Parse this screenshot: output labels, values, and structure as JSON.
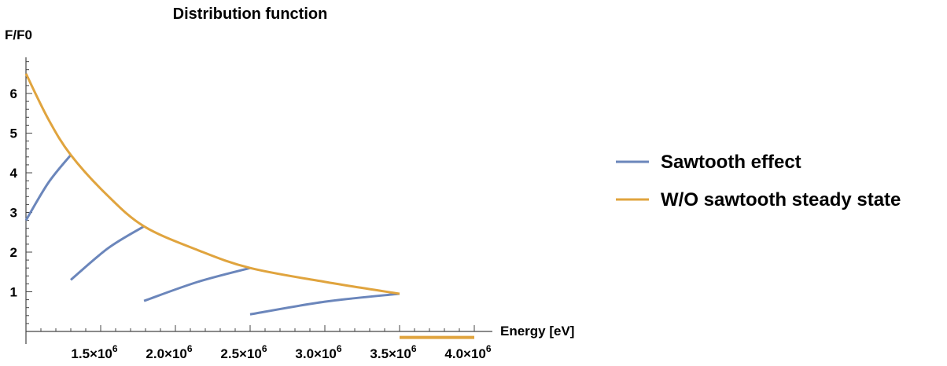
{
  "chart_data": {
    "type": "line",
    "title": "Distribution function",
    "xlabel": "Energy [eV]",
    "ylabel": "F/F0",
    "xlim": [
      1000000,
      4000000
    ],
    "ylim": [
      0,
      7
    ],
    "x_ticks": [
      {
        "value": 1500000,
        "mantissa": "1.5",
        "exponent": "6"
      },
      {
        "value": 2000000,
        "mantissa": "2.0",
        "exponent": "6"
      },
      {
        "value": 2500000,
        "mantissa": "2.5",
        "exponent": "6"
      },
      {
        "value": 3000000,
        "mantissa": "3.0",
        "exponent": "6"
      },
      {
        "value": 3500000,
        "mantissa": "3.5",
        "exponent": "6"
      },
      {
        "value": 4000000,
        "mantissa": "4.0",
        "exponent": "6"
      }
    ],
    "y_ticks": [
      1,
      2,
      3,
      4,
      5,
      6
    ],
    "grid": false,
    "legend_position": "right",
    "series": [
      {
        "name": "Sawtooth effect",
        "color": "#6b86bb",
        "segments": [
          {
            "x": [
              1000000,
              1150000,
              1300000
            ],
            "y": [
              2.8,
              3.75,
              4.45
            ]
          },
          {
            "x": [
              1300000,
              1550000,
              1790000
            ],
            "y": [
              1.3,
              2.1,
              2.65
            ]
          },
          {
            "x": [
              1790000,
              2150000,
              2500000
            ],
            "y": [
              0.77,
              1.25,
              1.6
            ]
          },
          {
            "x": [
              2500000,
              3000000,
              3500000
            ],
            "y": [
              0.43,
              0.75,
              0.95
            ]
          }
        ]
      },
      {
        "name": "W/O sawtooth steady state",
        "color": "#e0a43e",
        "segments": [
          {
            "x": [
              1000000,
              1150000,
              1300000,
              1540000,
              1790000,
              2150000,
              2500000,
              3000000,
              3500000
            ],
            "y": [
              6.5,
              5.35,
              4.45,
              3.45,
              2.65,
              2.05,
              1.6,
              1.25,
              0.95
            ]
          },
          {
            "x": [
              3500000,
              4000000
            ],
            "y": [
              -0.15,
              -0.15
            ]
          }
        ]
      }
    ]
  }
}
